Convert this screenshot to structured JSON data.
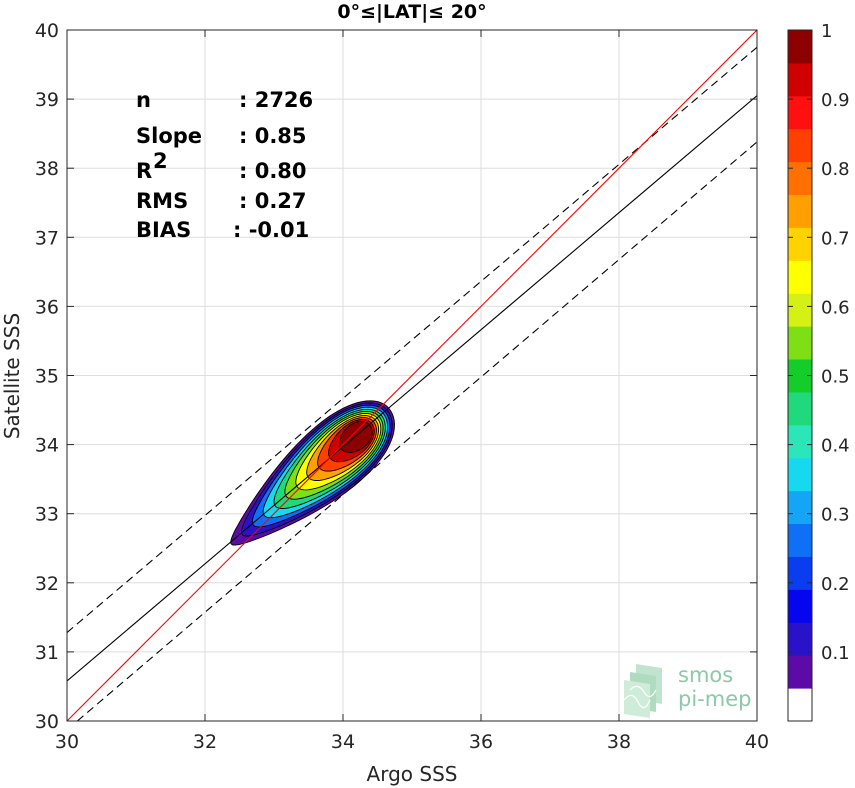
{
  "chart_data": {
    "type": "heatmap",
    "title": "0°≤|LAT|≤ 20°",
    "xlabel": "Argo SSS",
    "ylabel": "Satellite SSS",
    "xlim": [
      30,
      40
    ],
    "ylim": [
      30,
      40
    ],
    "xticks": [
      "30",
      "32",
      "34",
      "36",
      "38",
      "40"
    ],
    "yticks": [
      "30",
      "31",
      "32",
      "33",
      "34",
      "35",
      "36",
      "37",
      "38",
      "39",
      "40"
    ],
    "grid": true,
    "stats": [
      {
        "key": "n",
        "value": ": 2726"
      },
      {
        "key": "Slope",
        "value": ": 0.85"
      },
      {
        "key": "R",
        "sup": "2",
        "value": ": 0.80"
      },
      {
        "key": "RMS",
        "value": ": 0.27"
      },
      {
        "key": "BIAS",
        "value": ": -0.01"
      }
    ],
    "lines": {
      "one_to_one": {
        "color": "#ff0000",
        "points": [
          [
            30,
            30
          ],
          [
            40,
            40
          ]
        ]
      },
      "regression": {
        "color": "#000000",
        "style": "solid",
        "points": [
          [
            30,
            30.58
          ],
          [
            40,
            39.05
          ]
        ]
      },
      "band_upper": {
        "color": "#000000",
        "style": "dashed",
        "points": [
          [
            30,
            31.28
          ],
          [
            40,
            39.75
          ]
        ]
      },
      "band_lower": {
        "color": "#000000",
        "style": "dashed",
        "points": [
          [
            30.15,
            30
          ],
          [
            40,
            38.38
          ]
        ]
      }
    },
    "density": {
      "center": [
        34.4,
        34.3
      ],
      "lower_tail": [
        32.6,
        32.75
      ],
      "levels": [
        0.05,
        0.1,
        0.2,
        0.3,
        0.4,
        0.5,
        0.6,
        0.7,
        0.8,
        0.9
      ],
      "max_level": 0.95
    },
    "colorbar": {
      "range": [
        0,
        1
      ],
      "ticks": [
        "0.1",
        "0.2",
        "0.3",
        "0.4",
        "0.5",
        "0.6",
        "0.7",
        "0.8",
        "0.9",
        "1"
      ],
      "colors": [
        "#ffffff",
        "#5c0aa8",
        "#2a12c8",
        "#0505ef",
        "#0a3cf0",
        "#0f6ff5",
        "#14a5f7",
        "#16d9f0",
        "#2be6b8",
        "#1fd97a",
        "#14cc2a",
        "#7ee014",
        "#d4f014",
        "#ffff00",
        "#ffd200",
        "#ffa000",
        "#ff7000",
        "#ff4000",
        "#ff1010",
        "#d00000",
        "#8c0000"
      ]
    }
  },
  "logo": {
    "line1": "smos",
    "line2": "pi-mep"
  },
  "colors": {
    "one_to_one": "#ff0000",
    "grid": "#dedede",
    "axis": "#262626"
  }
}
